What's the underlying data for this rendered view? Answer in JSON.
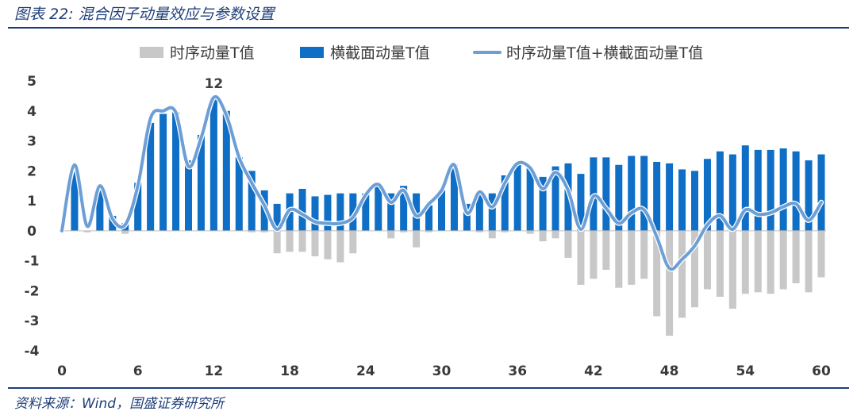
{
  "header": {
    "title": "图表 22: 混合因子动量效应与参数设置"
  },
  "footer": {
    "source": "资料来源：Wind，国盛证券研究所"
  },
  "chart_data": {
    "type": "bar",
    "x": [
      0,
      1,
      2,
      3,
      4,
      5,
      6,
      7,
      8,
      9,
      10,
      11,
      12,
      13,
      14,
      15,
      16,
      17,
      18,
      19,
      20,
      21,
      22,
      23,
      24,
      25,
      26,
      27,
      28,
      29,
      30,
      31,
      32,
      33,
      34,
      35,
      36,
      37,
      38,
      39,
      40,
      41,
      42,
      43,
      44,
      45,
      46,
      47,
      48,
      49,
      50,
      51,
      52,
      53,
      54,
      55,
      56,
      57,
      58,
      59,
      60
    ],
    "xticks": [
      0,
      6,
      12,
      18,
      24,
      30,
      36,
      42,
      48,
      54,
      60
    ],
    "ylim": [
      -4,
      5
    ],
    "yticks": [
      -4,
      -3,
      -2,
      -1,
      0,
      1,
      2,
      3,
      4,
      5
    ],
    "colors": {
      "ts": "#c8c8c8",
      "cs": "#0f6fc6",
      "combo": "#6d9fd6"
    },
    "series": [
      {
        "name": "时序动量T值",
        "kind": "bar",
        "values": [
          0,
          1.05,
          -0.05,
          0.45,
          0.2,
          -0.1,
          1.5,
          2.4,
          2.35,
          2.15,
          1.3,
          1.45,
          2.15,
          1.95,
          0.4,
          -0.05,
          -0.05,
          -0.75,
          -0.7,
          -0.7,
          -0.85,
          -0.95,
          -1.05,
          -0.75,
          0.1,
          0.3,
          -0.25,
          -0.05,
          -0.55,
          -0.05,
          0.4,
          1.05,
          0.1,
          -0.05,
          -0.25,
          -0.05,
          0.05,
          -0.1,
          -0.35,
          -0.25,
          -0.9,
          -1.8,
          -1.6,
          -1.3,
          -1.9,
          -1.8,
          -1.6,
          -2.85,
          -3.5,
          -2.9,
          -2.55,
          -1.95,
          -2.2,
          -2.6,
          -2.1,
          -2.05,
          -2.1,
          -1.95,
          -1.75,
          -2.05,
          -1.55
        ]
      },
      {
        "name": "横截面动量T值",
        "kind": "bar",
        "values": [
          0,
          2.2,
          0,
          1.5,
          0.5,
          0.25,
          1.6,
          3.6,
          3.9,
          3.95,
          2.35,
          3.2,
          4.45,
          4.0,
          2.45,
          2.0,
          1.35,
          0.9,
          1.25,
          1.4,
          1.15,
          1.2,
          1.25,
          1.25,
          1.25,
          1.55,
          1.25,
          1.5,
          1.25,
          0.85,
          1.35,
          2.2,
          0.9,
          1.3,
          1.25,
          1.85,
          2.25,
          2.1,
          1.8,
          2.15,
          2.25,
          1.9,
          2.45,
          2.45,
          2.2,
          2.5,
          2.5,
          2.3,
          2.25,
          2.05,
          2.0,
          2.4,
          2.65,
          2.55,
          2.85,
          2.7,
          2.7,
          2.75,
          2.65,
          2.35,
          2.55
        ]
      },
      {
        "name": "时序动量T值+横截面动量T值",
        "kind": "line",
        "values": [
          0,
          2.2,
          0.15,
          1.5,
          0.4,
          0.2,
          1.5,
          3.75,
          4.0,
          3.95,
          2.15,
          3.1,
          4.45,
          3.85,
          2.45,
          1.6,
          0.85,
          0.05,
          0.7,
          0.55,
          0.3,
          0.25,
          0.25,
          0.45,
          1.2,
          1.55,
          0.95,
          1.35,
          0.5,
          0.9,
          1.35,
          2.2,
          0.6,
          1.3,
          0.8,
          1.6,
          2.25,
          2.1,
          1.4,
          1.95,
          1.35,
          0.05,
          1.15,
          0.75,
          0.25,
          0.6,
          0.7,
          -0.2,
          -1.25,
          -0.95,
          -0.5,
          0.2,
          0.5,
          0.05,
          0.7,
          0.55,
          0.6,
          0.8,
          0.9,
          0.35,
          0.95
        ]
      }
    ],
    "annotations": [
      {
        "x": 12,
        "text": "12"
      }
    ]
  }
}
